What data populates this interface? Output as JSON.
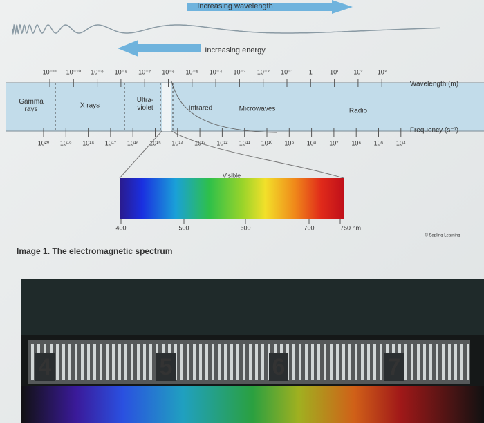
{
  "top_arrow": "Increasing wavelength",
  "energy_arrow": "Increasing energy",
  "wavelength": {
    "label": "Wavelength (m)",
    "ticks": [
      "10⁻¹¹",
      "10⁻¹⁰",
      "10⁻⁹",
      "10⁻⁸",
      "10⁻⁷",
      "10⁻⁶",
      "10⁻⁵",
      "10⁻⁴",
      "10⁻³",
      "10⁻²",
      "10⁻¹",
      "1",
      "10¹",
      "10²",
      "10³"
    ]
  },
  "frequency": {
    "label": "Frequency (s⁻¹)",
    "ticks": [
      "10²⁰",
      "10¹⁹",
      "10¹⁸",
      "10¹⁷",
      "10¹⁶",
      "10¹⁵",
      "10¹⁴",
      "10¹³",
      "10¹²",
      "10¹¹",
      "10¹⁰",
      "10⁹",
      "10⁸",
      "10⁷",
      "10⁶",
      "10⁵",
      "10⁴"
    ]
  },
  "regions": [
    "Gamma rays",
    "X rays",
    "Ultra-violet",
    "Infrared",
    "Microwaves",
    "Radio"
  ],
  "visible": {
    "label": "Visible",
    "ticks": [
      "400",
      "500",
      "600",
      "700",
      "750 nm"
    ]
  },
  "credit": "© Sapling Learning",
  "caption": "Image 1. The electromagnetic spectrum",
  "ruler": [
    "4",
    "5",
    "6",
    "7"
  ]
}
